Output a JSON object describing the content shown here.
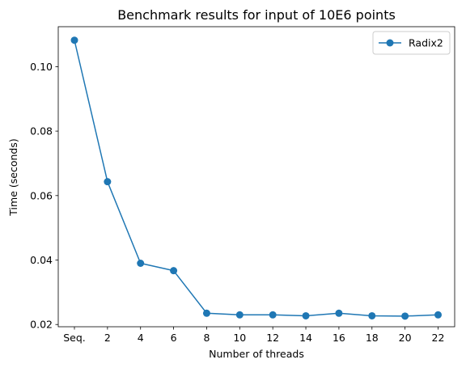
{
  "chart_data": {
    "type": "line",
    "title": "Benchmark results for input of 10E6 points",
    "xlabel": "Number of threads",
    "ylabel": "Time (seconds)",
    "categories": [
      "Seq.",
      "2",
      "4",
      "6",
      "8",
      "10",
      "12",
      "14",
      "16",
      "18",
      "20",
      "22"
    ],
    "yticks": [
      "0.02",
      "0.04",
      "0.06",
      "0.08",
      "0.10"
    ],
    "ylim": [
      0.0193,
      0.1124
    ],
    "grid": false,
    "legend_position": "top-right",
    "series": [
      {
        "name": "Radix2",
        "color": "#1f77b4",
        "values": [
          0.1082,
          0.0643,
          0.039,
          0.0367,
          0.0235,
          0.023,
          0.023,
          0.0227,
          0.0235,
          0.0227,
          0.0226,
          0.023
        ]
      }
    ]
  }
}
